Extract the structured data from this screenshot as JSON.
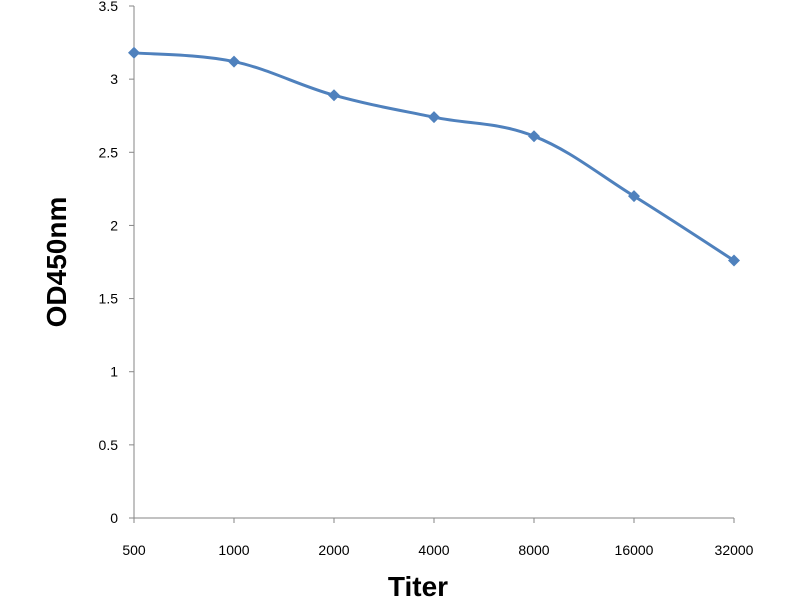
{
  "chart_data": {
    "type": "line",
    "title": "",
    "xlabel": "Titer",
    "ylabel": "OD450nm",
    "categories": [
      "500",
      "1000",
      "2000",
      "4000",
      "8000",
      "16000",
      "32000"
    ],
    "series": [
      {
        "values": [
          3.18,
          3.12,
          2.89,
          2.74,
          2.61,
          2.2,
          1.76
        ]
      }
    ],
    "ylim": [
      0,
      3.5
    ],
    "yticks": [
      "0",
      "0.5",
      "1",
      "1.5",
      "2",
      "2.5",
      "3",
      "3.5"
    ],
    "grid": false,
    "legend": "none",
    "line_color": "#4f81bd",
    "marker": "diamond"
  }
}
